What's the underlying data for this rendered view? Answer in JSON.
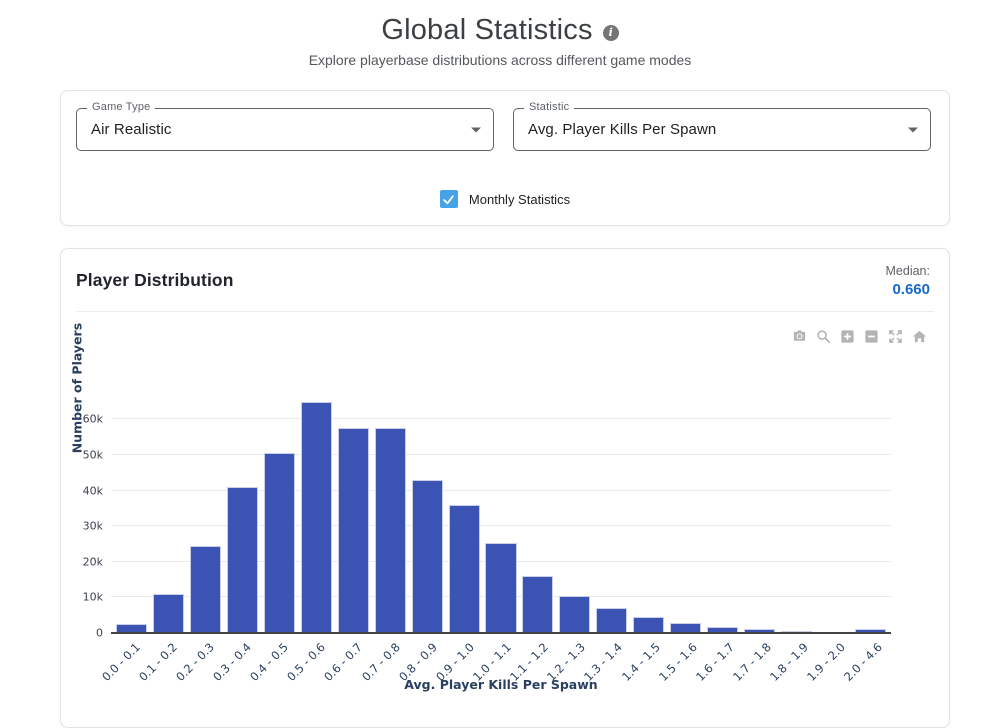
{
  "header": {
    "title": "Global Statistics",
    "subtitle": "Explore playerbase distributions across different game modes",
    "info_icon": "info-icon"
  },
  "filters": {
    "game_type": {
      "label": "Game Type",
      "value": "Air Realistic"
    },
    "statistic": {
      "label": "Statistic",
      "value": "Avg. Player Kills Per Spawn"
    },
    "monthly_checkbox": {
      "label": "Monthly Statistics",
      "checked": true
    }
  },
  "panel": {
    "title": "Player Distribution",
    "median_label": "Median:",
    "median_value": "0.660"
  },
  "toolbar": {
    "icons": [
      "camera-icon",
      "zoom-icon",
      "zoom-in-icon",
      "zoom-out-icon",
      "autoscale-icon",
      "reset-axes-icon"
    ]
  },
  "colors": {
    "bar": "#3b54b4",
    "median_blue": "#1668cc",
    "checkbox_blue": "#47a3e8",
    "axis_text": "#2a3f5f"
  },
  "chart_data": {
    "type": "bar",
    "title": "Player Distribution",
    "categories": [
      "0.0 - 0.1",
      "0.1 - 0.2",
      "0.2 - 0.3",
      "0.3 - 0.4",
      "0.4 - 0.5",
      "0.5 - 0.6",
      "0.6 - 0.7",
      "0.7 - 0.8",
      "0.8 - 0.9",
      "0.9 - 1.0",
      "1.0 - 1.1",
      "1.1 - 1.2",
      "1.2 - 1.3",
      "1.3 - 1.4",
      "1.4 - 1.5",
      "1.5 - 1.6",
      "1.6 - 1.7",
      "1.7 - 1.8",
      "1.8 - 1.9",
      "1.9 - 2.0",
      "2.0 - 4.6"
    ],
    "values": [
      2400,
      11000,
      24500,
      41000,
      50500,
      65000,
      57500,
      57500,
      43000,
      36000,
      25300,
      16000,
      10500,
      7000,
      4500,
      2700,
      1600,
      1000,
      700,
      400,
      1200
    ],
    "xlabel": "Avg. Player Kills Per Spawn",
    "ylabel": "Number of Players",
    "yticks": [
      0,
      10000,
      20000,
      30000,
      40000,
      50000,
      60000
    ],
    "ytick_labels": [
      "0",
      "10k",
      "20k",
      "30k",
      "40k",
      "50k",
      "60k"
    ],
    "ylim": [
      0,
      68000
    ],
    "grid": true,
    "legend": false
  }
}
